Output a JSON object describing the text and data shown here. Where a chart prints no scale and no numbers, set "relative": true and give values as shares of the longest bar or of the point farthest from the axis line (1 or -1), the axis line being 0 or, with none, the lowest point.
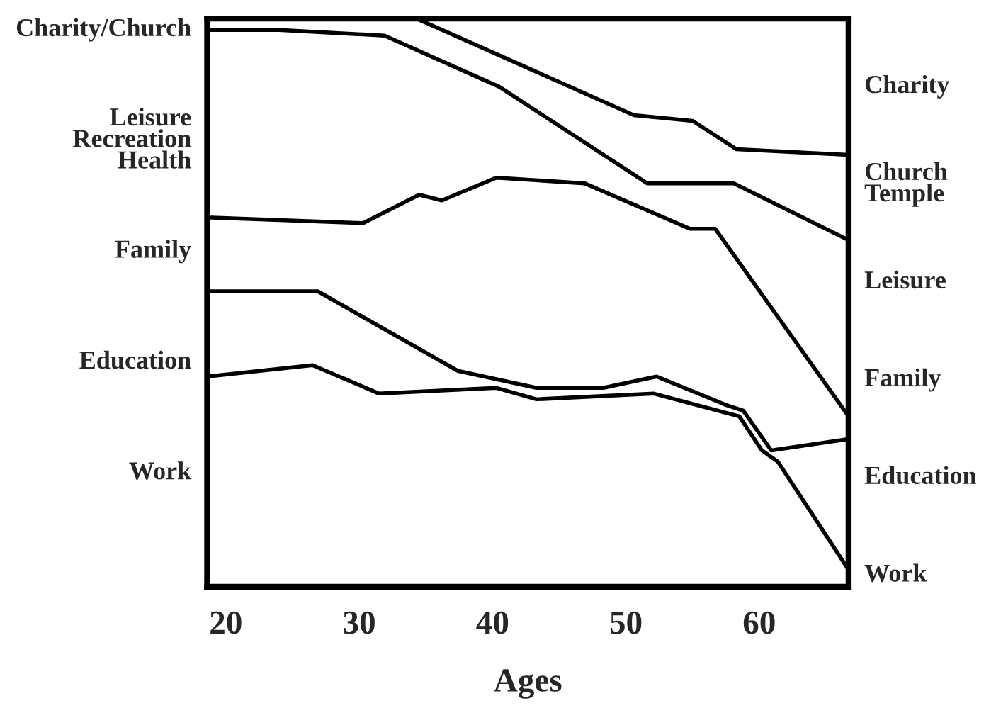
{
  "chart_data": {
    "type": "line",
    "relative": true,
    "xlabel": "Ages",
    "xlim": [
      18.6,
      66.7
    ],
    "xticks": [
      20,
      30,
      40,
      50,
      60
    ],
    "series": [
      {
        "color": "#000000",
        "x": [
          34.3,
          50.6,
          55.0,
          58.3,
          66.7
        ],
        "values": [
          1.0,
          0.83,
          0.82,
          0.77,
          0.76
        ]
      },
      {
        "color": "#000000",
        "x": [
          18.6,
          24.0,
          31.9,
          40.5,
          51.6,
          58.1,
          66.7
        ],
        "values": [
          0.98,
          0.98,
          0.97,
          0.88,
          0.71,
          0.71,
          0.61
        ]
      },
      {
        "color": "#000000",
        "x": [
          18.6,
          30.3,
          34.5,
          36.2,
          40.3,
          46.9,
          54.8,
          56.7,
          66.7
        ],
        "values": [
          0.65,
          0.64,
          0.69,
          0.68,
          0.72,
          0.71,
          0.63,
          0.63,
          0.3
        ]
      },
      {
        "color": "#000000",
        "x": [
          18.6,
          26.9,
          37.4,
          43.3,
          48.3,
          52.3,
          57.5,
          58.8,
          60.9,
          66.7
        ],
        "values": [
          0.52,
          0.52,
          0.38,
          0.35,
          0.35,
          0.37,
          0.32,
          0.31,
          0.24,
          0.26
        ]
      },
      {
        "color": "#000000",
        "x": [
          18.6,
          26.5,
          31.5,
          40.3,
          43.3,
          52.1,
          58.5,
          60.2,
          61.4,
          66.7
        ],
        "values": [
          0.37,
          0.39,
          0.34,
          0.35,
          0.33,
          0.34,
          0.3,
          0.24,
          0.22,
          0.03
        ]
      }
    ],
    "annotations": [
      "Charity/Church",
      "Leisure\nRecreation\nHealth",
      "Family",
      "Education",
      "Work",
      "Charity",
      "Church\nTemple",
      "Leisure",
      "Family",
      "Education",
      "Work"
    ]
  }
}
